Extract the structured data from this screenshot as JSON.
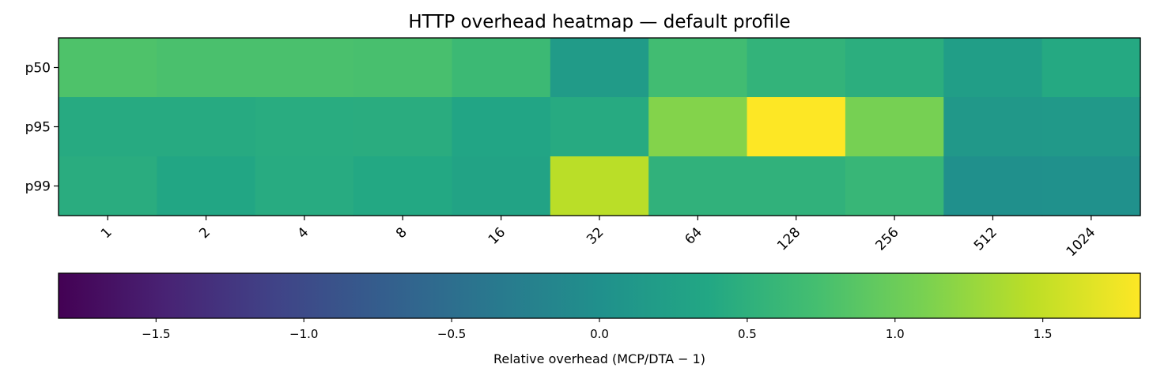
{
  "chart_data": {
    "type": "heatmap",
    "title": "HTTP overhead heatmap — default profile",
    "x_categories": [
      "1",
      "2",
      "4",
      "8",
      "16",
      "32",
      "64",
      "128",
      "256",
      "512",
      "1024"
    ],
    "y_categories": [
      "p50",
      "p95",
      "p99"
    ],
    "values": [
      [
        0.8,
        0.77,
        0.77,
        0.76,
        0.65,
        0.18,
        0.7,
        0.55,
        0.47,
        0.22,
        0.4
      ],
      [
        0.42,
        0.42,
        0.44,
        0.45,
        0.33,
        0.42,
        1.15,
        1.83,
        1.08,
        0.12,
        0.14
      ],
      [
        0.45,
        0.35,
        0.43,
        0.38,
        0.31,
        1.45,
        0.53,
        0.53,
        0.6,
        0.0,
        0.02
      ]
    ],
    "colormap": "viridis",
    "color_range": [
      -1.83,
      1.83
    ],
    "colorbar": {
      "label": "Relative overhead (MCP/DTA − 1)",
      "ticks": [
        -1.5,
        -1.0,
        -0.5,
        0.0,
        0.5,
        1.0,
        1.5
      ],
      "tick_labels": [
        "−1.5",
        "−1.0",
        "−0.5",
        "0.0",
        "0.5",
        "1.0",
        "1.5"
      ],
      "orientation": "horizontal",
      "placement": "bottom"
    },
    "xlabel": "",
    "ylabel": ""
  }
}
